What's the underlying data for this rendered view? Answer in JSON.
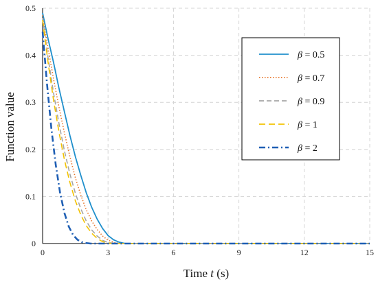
{
  "chart_data": {
    "type": "line",
    "title": "",
    "xlabel": {
      "prefix": "Time ",
      "var": "t",
      "suffix": " (s)"
    },
    "ylabel": "Function value",
    "xlim": [
      0,
      15
    ],
    "ylim": [
      0,
      0.5
    ],
    "x_ticks": [
      0,
      3,
      6,
      9,
      12,
      15
    ],
    "x_tick_labels": [
      "0",
      "3",
      "6",
      "9",
      "12",
      "15"
    ],
    "y_ticks": [
      0,
      0.1,
      0.2,
      0.3,
      0.4,
      0.5
    ],
    "y_tick_labels": [
      "0",
      "0.1",
      "0.2",
      "0.3",
      "0.4",
      "0.5"
    ],
    "grid": {
      "x": true,
      "y": true,
      "style": "dashed"
    },
    "legend_position": "top-right",
    "series": [
      {
        "name": {
          "symbol": "β",
          "rest": " = 0.5"
        },
        "color": "#1f8fcc",
        "dash": "solid",
        "x": [
          0,
          0.25,
          0.5,
          0.75,
          1.0,
          1.25,
          1.5,
          1.75,
          2.0,
          2.25,
          2.5,
          2.75,
          3.0,
          3.25,
          3.5,
          3.8,
          15
        ],
        "y": [
          0.49,
          0.435,
          0.385,
          0.33,
          0.28,
          0.23,
          0.185,
          0.145,
          0.108,
          0.077,
          0.052,
          0.032,
          0.017,
          0.008,
          0.003,
          0,
          0
        ]
      },
      {
        "name": {
          "symbol": "β",
          "rest": " = 0.7"
        },
        "color": "#e8762b",
        "dash": "1.5,2.5",
        "x": [
          0,
          0.25,
          0.5,
          0.75,
          1.0,
          1.25,
          1.5,
          1.75,
          2.0,
          2.25,
          2.5,
          2.75,
          3.0,
          3.3,
          3.6,
          15
        ],
        "y": [
          0.485,
          0.415,
          0.35,
          0.29,
          0.235,
          0.185,
          0.14,
          0.103,
          0.072,
          0.048,
          0.03,
          0.016,
          0.007,
          0.002,
          0,
          0
        ]
      },
      {
        "name": {
          "symbol": "β",
          "rest": " = 0.9"
        },
        "color": "#a6a6a6",
        "dash": "7,4",
        "x": [
          0,
          0.25,
          0.5,
          0.75,
          1.0,
          1.25,
          1.5,
          1.75,
          2.0,
          2.25,
          2.5,
          2.75,
          3.0,
          3.4,
          15
        ],
        "y": [
          0.48,
          0.395,
          0.32,
          0.255,
          0.197,
          0.148,
          0.107,
          0.074,
          0.048,
          0.029,
          0.016,
          0.007,
          0.002,
          0,
          0
        ]
      },
      {
        "name": {
          "symbol": "β",
          "rest": " = 1"
        },
        "color": "#f2c200",
        "dash": "9,5",
        "x": [
          0,
          0.25,
          0.5,
          0.75,
          1.0,
          1.25,
          1.5,
          1.75,
          2.0,
          2.25,
          2.5,
          2.75,
          3.0,
          3.3,
          15
        ],
        "y": [
          0.475,
          0.385,
          0.305,
          0.237,
          0.178,
          0.13,
          0.091,
          0.061,
          0.038,
          0.022,
          0.011,
          0.004,
          0.001,
          0,
          0
        ]
      },
      {
        "name": {
          "symbol": "β",
          "rest": " = 2"
        },
        "color": "#1f5fb4",
        "dash": "9,4,2,4",
        "x": [
          0,
          0.2,
          0.4,
          0.6,
          0.8,
          1.0,
          1.2,
          1.4,
          1.6,
          1.8,
          2.0,
          2.2,
          2.4,
          15
        ],
        "y": [
          0.45,
          0.34,
          0.245,
          0.168,
          0.108,
          0.065,
          0.036,
          0.018,
          0.008,
          0.003,
          0.001,
          0,
          0,
          0
        ]
      }
    ]
  }
}
